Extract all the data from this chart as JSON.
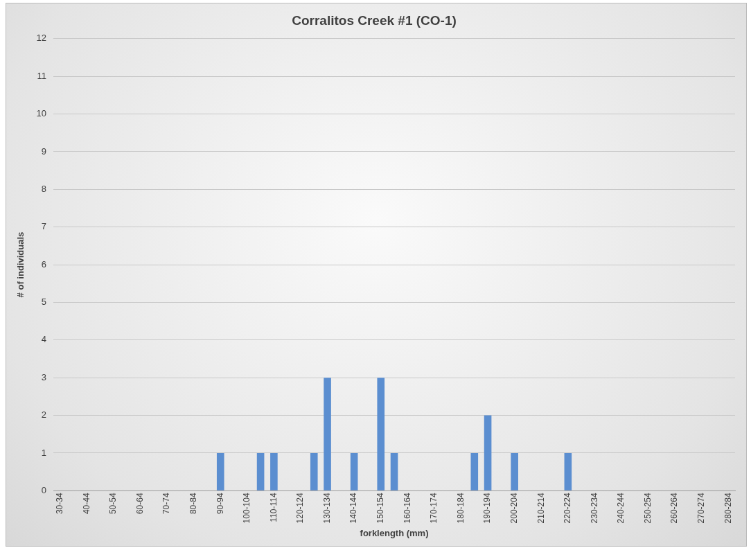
{
  "chart_data": {
    "type": "bar",
    "title": "Corralitos Creek #1 (CO-1)",
    "xlabel": "forklength (mm)",
    "ylabel": "# of individuals",
    "categories": [
      "30-34",
      null,
      "40-44",
      null,
      "50-54",
      null,
      "60-64",
      null,
      "70-74",
      null,
      "80-84",
      null,
      "90-94",
      null,
      "100-104",
      null,
      "110-114",
      null,
      "120-124",
      null,
      "130-134",
      null,
      "140-144",
      null,
      "150-154",
      null,
      "160-164",
      null,
      "170-174",
      null,
      "180-184",
      null,
      "190-194",
      null,
      "200-204",
      null,
      "210-214",
      null,
      "220-224",
      null,
      "230-234",
      null,
      "240-244",
      null,
      "250-254",
      null,
      "260-264",
      null,
      "270-274",
      null,
      "280-284"
    ],
    "values": [
      0,
      0,
      0,
      0,
      0,
      0,
      0,
      0,
      0,
      0,
      0,
      0,
      1,
      0,
      0,
      1,
      1,
      0,
      0,
      1,
      3,
      0,
      1,
      0,
      3,
      1,
      0,
      0,
      0,
      0,
      0,
      1,
      2,
      0,
      1,
      0,
      0,
      0,
      1,
      0,
      0,
      0,
      0,
      0,
      0,
      0,
      0,
      0,
      0,
      0,
      0
    ],
    "color": "#5b8ed0",
    "ylim": [
      0,
      12
    ],
    "yticks": [
      0,
      1,
      2,
      3,
      4,
      5,
      6,
      7,
      8,
      9,
      10,
      11,
      12
    ],
    "grid": "y"
  }
}
